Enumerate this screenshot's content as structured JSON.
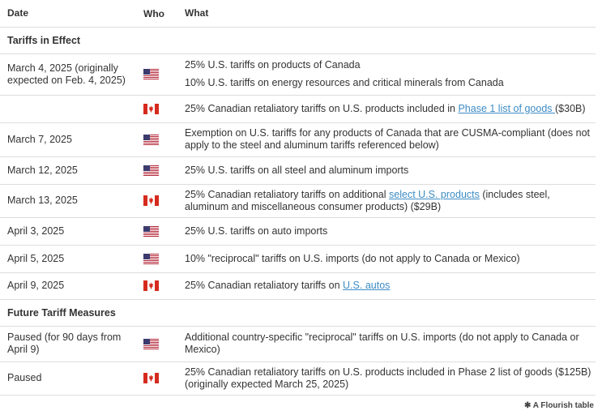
{
  "header": {
    "date": "Date",
    "who": "Who",
    "what": "What"
  },
  "sections": [
    {
      "title": "Tariffs in Effect",
      "rows": [
        {
          "date": "March 4, 2025 (originally expected on Feb. 4, 2025)",
          "what": [
            [
              "25% U.S. tariffs on products of Canada"
            ],
            [
              "10% U.S. tariffs on energy resources and critical minerals from Canada"
            ]
          ]
        },
        {
          "what": [
            [
              "25% Canadian retaliatory tariffs on U.S. products included in ",
              "Phase 1 list of goods ",
              "($30B)"
            ]
          ]
        },
        {
          "date": "March 7, 2025",
          "what": [
            [
              "Exemption on U.S. tariffs for any products of Canada that are CUSMA-compliant (does not apply to the steel and aluminum tariffs referenced below)"
            ]
          ]
        },
        {
          "date": "March 12, 2025",
          "what": [
            [
              "25% U.S. tariffs on all steel and aluminum imports"
            ]
          ]
        },
        {
          "date": "March 13, 2025",
          "what": [
            [
              "25% Canadian retaliatory tariffs on additional ",
              "select U.S. products",
              " (includes steel, aluminum and miscellaneous consumer products) ($29B)"
            ]
          ]
        },
        {
          "date": "April 3, 2025",
          "what": [
            [
              "25% U.S. tariffs on auto imports"
            ]
          ]
        },
        {
          "date": "April 5, 2025",
          "what": [
            [
              "10% \"reciprocal\" tariffs on U.S. imports (do not apply to Canada or Mexico)"
            ]
          ]
        },
        {
          "date": "April 9, 2025",
          "what": [
            [
              "25% Canadian retaliatory tariffs on ",
              "U.S. autos"
            ]
          ]
        }
      ]
    },
    {
      "title": "Future Tariff Measures",
      "rows": [
        {
          "date": "Paused (for 90 days from April 9)",
          "what": [
            [
              "Additional country-specific \"reciprocal\" tariffs on U.S. imports (do not apply to Canada or Mexico)"
            ]
          ]
        },
        {
          "date": "Paused",
          "what": [
            [
              "25% Canadian retaliatory tariffs on U.S. products included in Phase 2 list of goods ($125B) (originally expected March 25, 2025)"
            ]
          ]
        }
      ]
    }
  ],
  "footer": "A Flourish table"
}
